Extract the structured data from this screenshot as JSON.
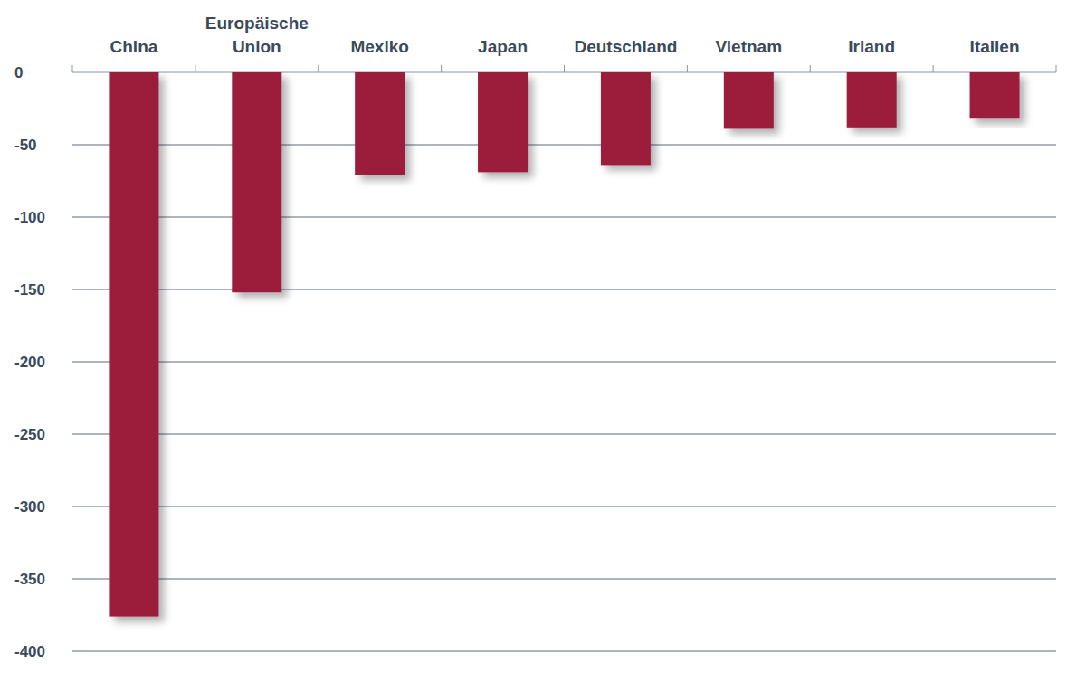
{
  "chart_data": {
    "type": "bar",
    "categories": [
      "China",
      "Europäische Union",
      "Mexiko",
      "Japan",
      "Deutschland",
      "Vietnam",
      "Irland",
      "Italien"
    ],
    "values": [
      -376,
      -152,
      -71,
      -69,
      -64,
      -39,
      -38,
      -32
    ],
    "color": "#9b1b3a",
    "ylim": [
      -400,
      0
    ],
    "yticks": [
      0,
      -50,
      -100,
      -150,
      -200,
      -250,
      -300,
      -350,
      -400
    ],
    "grid": true
  }
}
